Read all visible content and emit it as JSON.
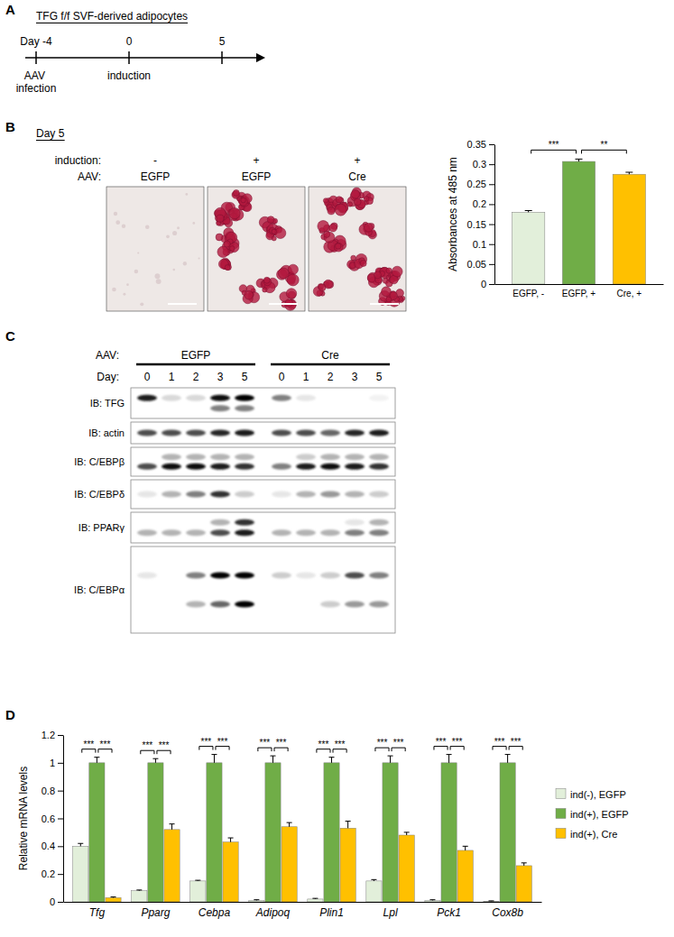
{
  "panels": [
    "A",
    "B",
    "C",
    "D"
  ],
  "timeline": {
    "title": "TFG f/f SVF-derived adipocytes",
    "ticks": [
      "Day -4",
      "0",
      "5"
    ],
    "events": [
      "AAV infection",
      "induction",
      null
    ]
  },
  "images": {
    "title": "Day 5",
    "row_labels": [
      "induction:",
      "AAV:"
    ],
    "columns": [
      {
        "induction": "-",
        "aav": "EGFP",
        "stained": false
      },
      {
        "induction": "+",
        "aav": "EGFP",
        "stained": true
      },
      {
        "induction": "+",
        "aav": "Cre",
        "stained": true
      }
    ]
  },
  "blot": {
    "group_label": "AAV:",
    "day_label": "Day:",
    "groups": [
      {
        "name": "EGFP",
        "days": [
          "0",
          "1",
          "2",
          "3",
          "5"
        ]
      },
      {
        "name": "Cre",
        "days": [
          "0",
          "1",
          "2",
          "3",
          "5"
        ]
      }
    ],
    "rows": [
      {
        "label": "IB: TFG",
        "bands": [
          [
            0.9,
            0.15,
            0.15,
            0.95,
            1.0,
            0.5,
            0.1,
            0.0,
            0.0,
            0.05
          ],
          [
            0.0,
            0.0,
            0.0,
            0.5,
            0.5,
            0.0,
            0.0,
            0.0,
            0.0,
            0.0
          ]
        ]
      },
      {
        "label": "IB: actin",
        "bands": [
          [
            0.7,
            0.7,
            0.7,
            0.85,
            0.9,
            0.7,
            0.7,
            0.6,
            0.85,
            0.9
          ]
        ]
      },
      {
        "label": "IB: C/EBPβ",
        "bands": [
          [
            0.0,
            0.3,
            0.3,
            0.3,
            0.3,
            0.0,
            0.2,
            0.3,
            0.3,
            0.3
          ],
          [
            0.7,
            0.95,
            0.95,
            0.9,
            0.8,
            0.5,
            0.9,
            0.95,
            0.9,
            0.8
          ]
        ]
      },
      {
        "label": "IB: C/EBPδ",
        "bands": [
          [
            0.1,
            0.3,
            0.5,
            0.8,
            0.2,
            0.1,
            0.3,
            0.4,
            0.3,
            0.2
          ]
        ]
      },
      {
        "label": "IB: PPARγ",
        "bands": [
          [
            0.0,
            0.0,
            0.0,
            0.3,
            0.8,
            0.0,
            0.0,
            0.0,
            0.1,
            0.3
          ],
          [
            0.3,
            0.3,
            0.3,
            0.7,
            0.9,
            0.3,
            0.3,
            0.3,
            0.5,
            0.5
          ]
        ]
      },
      {
        "label": "IB: C/EBPα",
        "bands": [
          [
            0.1,
            0.0,
            0.5,
            1.0,
            1.0,
            0.2,
            0.1,
            0.2,
            0.7,
            0.5
          ],
          [
            0.0,
            0.0,
            0.3,
            0.6,
            1.0,
            0.0,
            0.0,
            0.2,
            0.4,
            0.4
          ]
        ]
      }
    ]
  },
  "chart_data": [
    {
      "type": "bar",
      "categories": [
        "EGFP, -",
        "EGFP, +",
        "Cre, +"
      ],
      "values": [
        0.18,
        0.307,
        0.275
      ],
      "errors": [
        0.004,
        0.006,
        0.005
      ],
      "colors": [
        "#e2efda",
        "#70ad47",
        "#ffc000"
      ],
      "ylabel": "Absorbances at 485 nm",
      "ylim": [
        0,
        0.35
      ],
      "yticks": [
        0,
        0.05,
        0.1,
        0.15,
        0.2,
        0.25,
        0.3,
        0.35
      ],
      "significance": [
        {
          "pair": [
            "EGFP, -",
            "EGFP, +"
          ],
          "label": "***"
        },
        {
          "pair": [
            "EGFP, +",
            "Cre, +"
          ],
          "label": "**"
        }
      ]
    },
    {
      "type": "bar",
      "categories": [
        "Tfg",
        "Pparg",
        "Cebpa",
        "Adipoq",
        "Plin1",
        "Lpl",
        "Pck1",
        "Cox8b"
      ],
      "series": [
        {
          "name": "ind(-), EGFP",
          "color": "#e2efda",
          "values": [
            0.4,
            0.08,
            0.15,
            0.01,
            0.02,
            0.15,
            0.01,
            0.005
          ],
          "errors": [
            0.02,
            0.005,
            0.005,
            0.005,
            0.005,
            0.01,
            0.005,
            0.002
          ]
        },
        {
          "name": "ind(+), EGFP",
          "color": "#70ad47",
          "values": [
            1.0,
            1.0,
            1.0,
            1.0,
            1.0,
            1.0,
            1.0,
            1.0
          ],
          "errors": [
            0.04,
            0.03,
            0.06,
            0.05,
            0.04,
            0.05,
            0.06,
            0.06
          ]
        },
        {
          "name": "ind(+), Cre",
          "color": "#ffc000",
          "values": [
            0.03,
            0.52,
            0.43,
            0.54,
            0.53,
            0.48,
            0.37,
            0.26
          ],
          "errors": [
            0.005,
            0.04,
            0.03,
            0.03,
            0.05,
            0.02,
            0.03,
            0.02
          ]
        }
      ],
      "ylabel": "Relative mRNA levels",
      "ylim": [
        0,
        1.2
      ],
      "yticks": [
        0,
        0.2,
        0.4,
        0.6,
        0.8,
        1,
        1.2
      ],
      "legend": "right",
      "significance": [
        {
          "category": "Tfg",
          "pair": [
            "ind(-), EGFP",
            "ind(+), EGFP"
          ],
          "label": "***"
        },
        {
          "category": "Tfg",
          "pair": [
            "ind(+), EGFP",
            "ind(+), Cre"
          ],
          "label": "***"
        },
        {
          "category": "Pparg",
          "pair": [
            "ind(-), EGFP",
            "ind(+), EGFP"
          ],
          "label": "***"
        },
        {
          "category": "Pparg",
          "pair": [
            "ind(+), EGFP",
            "ind(+), Cre"
          ],
          "label": "***"
        },
        {
          "category": "Cebpa",
          "pair": [
            "ind(-), EGFP",
            "ind(+), EGFP"
          ],
          "label": "***"
        },
        {
          "category": "Cebpa",
          "pair": [
            "ind(+), EGFP",
            "ind(+), Cre"
          ],
          "label": "***"
        },
        {
          "category": "Adipoq",
          "pair": [
            "ind(-), EGFP",
            "ind(+), EGFP"
          ],
          "label": "***"
        },
        {
          "category": "Adipoq",
          "pair": [
            "ind(+), EGFP",
            "ind(+), Cre"
          ],
          "label": "***"
        },
        {
          "category": "Plin1",
          "pair": [
            "ind(-), EGFP",
            "ind(+), EGFP"
          ],
          "label": "***"
        },
        {
          "category": "Plin1",
          "pair": [
            "ind(+), EGFP",
            "ind(+), Cre"
          ],
          "label": "***"
        },
        {
          "category": "Lpl",
          "pair": [
            "ind(-), EGFP",
            "ind(+), EGFP"
          ],
          "label": "***"
        },
        {
          "category": "Lpl",
          "pair": [
            "ind(+), EGFP",
            "ind(+), Cre"
          ],
          "label": "***"
        },
        {
          "category": "Pck1",
          "pair": [
            "ind(-), EGFP",
            "ind(+), EGFP"
          ],
          "label": "***"
        },
        {
          "category": "Pck1",
          "pair": [
            "ind(+), EGFP",
            "ind(+), Cre"
          ],
          "label": "***"
        },
        {
          "category": "Cox8b",
          "pair": [
            "ind(-), EGFP",
            "ind(+), EGFP"
          ],
          "label": "***"
        },
        {
          "category": "Cox8b",
          "pair": [
            "ind(+), EGFP",
            "ind(+), Cre"
          ],
          "label": "***"
        }
      ]
    }
  ]
}
